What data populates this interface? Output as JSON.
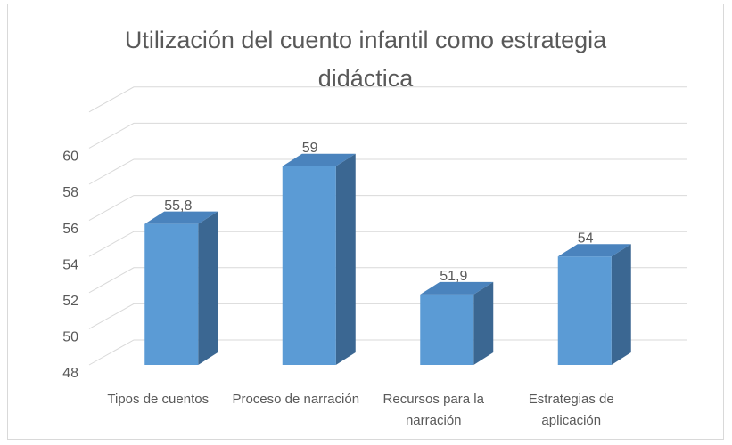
{
  "chart_data": {
    "type": "bar3d",
    "title": "Utilización del cuento infantil como estrategia didáctica",
    "categories": [
      "Tipos de cuentos",
      "Proceso de narración",
      "Recursos para la narración",
      "Estrategias de aplicación"
    ],
    "values": [
      55.8,
      59,
      51.9,
      54
    ],
    "value_labels": [
      "55,8",
      "59",
      "51,9",
      "54"
    ],
    "color": "#5b9bd5",
    "ylim": [
      48,
      62
    ],
    "yticks": [
      48,
      50,
      52,
      54,
      56,
      58,
      60
    ],
    "grid": true
  }
}
